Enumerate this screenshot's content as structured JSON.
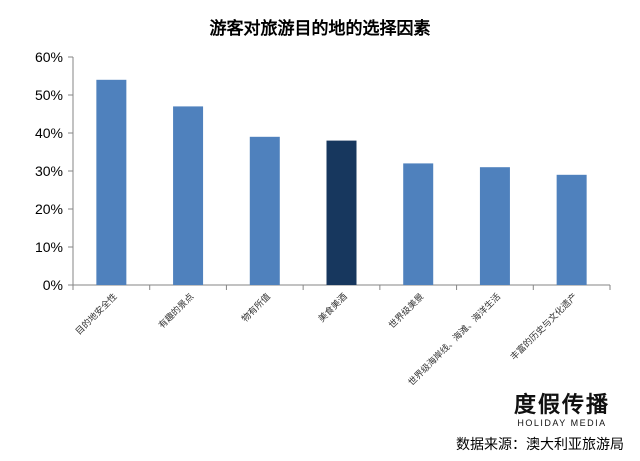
{
  "chart_data": {
    "type": "bar",
    "title": "游客对旅游目的地的选择因素",
    "categories": [
      "目的地安全性",
      "有趣的景点",
      "物有所值",
      "美食美酒",
      "世界级美景",
      "世界级海岸线、海滩、海洋生活",
      "丰富的历史与文化遗产"
    ],
    "values": [
      0.54,
      0.47,
      0.39,
      0.38,
      0.32,
      0.31,
      0.29
    ],
    "highlight_index": 3,
    "yticks": [
      "0%",
      "10%",
      "20%",
      "30%",
      "40%",
      "50%",
      "60%"
    ],
    "ylim": [
      0,
      0.6
    ],
    "grid": false,
    "colors": {
      "bar": "#4f81bd",
      "highlight": "#17375e",
      "axis": "#868686"
    }
  },
  "logo": {
    "cn": "度假传播",
    "en": "HOLIDAY MEDIA"
  },
  "source": "数据来源：澳大利亚旅游局"
}
